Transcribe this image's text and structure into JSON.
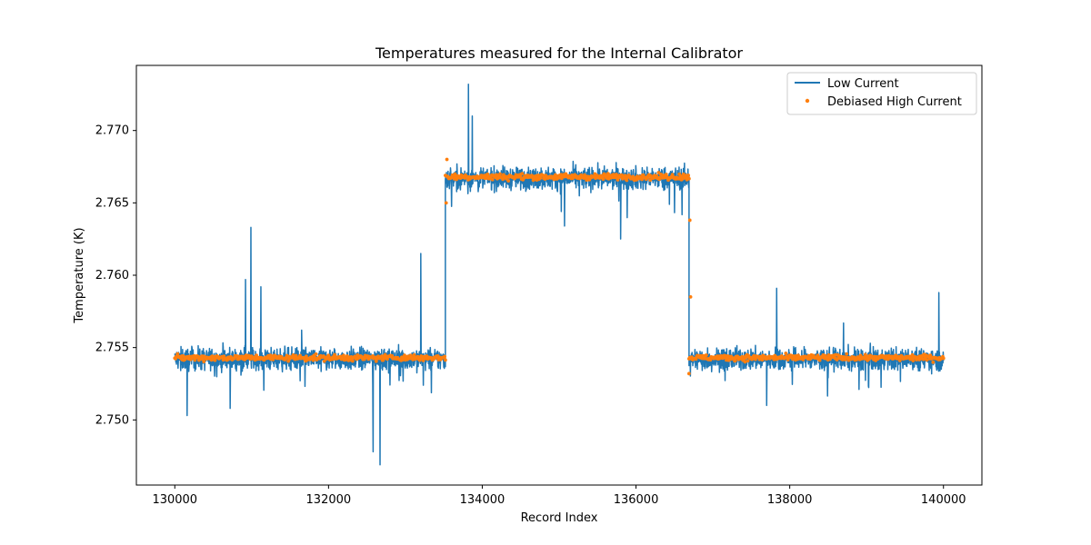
{
  "chart_data": {
    "type": "line",
    "title": "Temperatures measured for the Internal Calibrator",
    "xlabel": "Record Index",
    "ylabel": "Temperature (K)",
    "xlim": [
      129500,
      140500
    ],
    "ylim": [
      2.7455,
      2.7745
    ],
    "xticks": [
      130000,
      132000,
      134000,
      136000,
      138000,
      140000
    ],
    "yticks": [
      2.75,
      2.755,
      2.76,
      2.765,
      2.77
    ],
    "grid": false,
    "legend_position": "top-right",
    "series": [
      {
        "name": "Low Current",
        "kind": "line",
        "color": "#1f77b4",
        "segments": [
          {
            "x_start": 130000,
            "x_end": 133520,
            "mean": 2.7542,
            "spread": 1.0
          },
          {
            "x_start": 133520,
            "x_end": 136690,
            "mean": 2.7667,
            "spread": 1.0
          },
          {
            "x_start": 136690,
            "x_end": 140000,
            "mean": 2.7542,
            "spread": 1.0
          }
        ],
        "spikes": [
          {
            "x": 130160,
            "y": 2.7503
          },
          {
            "x": 130720,
            "y": 2.7508
          },
          {
            "x": 130920,
            "y": 2.7597
          },
          {
            "x": 130990,
            "y": 2.7633
          },
          {
            "x": 131120,
            "y": 2.7592
          },
          {
            "x": 131650,
            "y": 2.7562
          },
          {
            "x": 132580,
            "y": 2.7478
          },
          {
            "x": 132670,
            "y": 2.7469
          },
          {
            "x": 133200,
            "y": 2.7615
          },
          {
            "x": 133820,
            "y": 2.7732
          },
          {
            "x": 133870,
            "y": 2.771
          },
          {
            "x": 135070,
            "y": 2.7634
          },
          {
            "x": 135800,
            "y": 2.7625
          },
          {
            "x": 137830,
            "y": 2.7591
          },
          {
            "x": 137700,
            "y": 2.751
          },
          {
            "x": 139940,
            "y": 2.7588
          },
          {
            "x": 138700,
            "y": 2.7567
          }
        ]
      },
      {
        "name": "Debiased High Current",
        "kind": "scatter",
        "color": "#ff7f0e",
        "segments": [
          {
            "x_start": 130000,
            "x_end": 133520,
            "mean": 2.7543,
            "spread": 0.2
          },
          {
            "x_start": 133520,
            "x_end": 136690,
            "mean": 2.7668,
            "spread": 0.2
          },
          {
            "x_start": 136690,
            "x_end": 140000,
            "mean": 2.7543,
            "spread": 0.2
          }
        ],
        "extra_points": [
          {
            "x": 133530,
            "y": 2.765
          },
          {
            "x": 133540,
            "y": 2.768
          },
          {
            "x": 136700,
            "y": 2.7638
          },
          {
            "x": 136710,
            "y": 2.7585
          },
          {
            "x": 136690,
            "y": 2.7532
          }
        ]
      }
    ]
  }
}
